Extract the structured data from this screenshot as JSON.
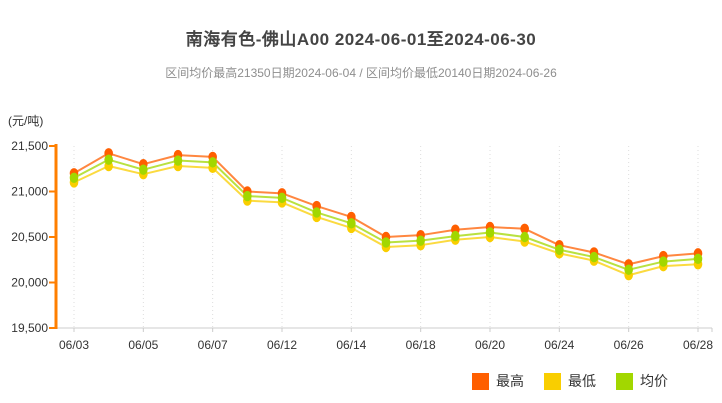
{
  "header": {
    "title": "南海有色-佛山A00 2024-06-01至2024-06-30",
    "subtitle": "区间均价最高21350日期2024-06-04 / 区间均价最低20140日期2024-06-26"
  },
  "axis": {
    "unit_label": "(元/吨)",
    "y_tick_labels": [
      "19,500",
      "20,000",
      "20,500",
      "21,000",
      "21,500"
    ],
    "x_tick_labels": [
      "06/03",
      "06/05",
      "06/07",
      "06/12",
      "06/14",
      "06/18",
      "06/20",
      "06/24",
      "06/26",
      "06/28"
    ]
  },
  "colors": {
    "high": "#ff5f00",
    "low": "#f9ce00",
    "avg": "#a2d700",
    "y_axis": "#ff7f00",
    "x_axis": "#cccccc",
    "gridline": "#dddddd",
    "tick_text": "#333333",
    "title_text": "#444444",
    "subtitle_text": "#8e8e8e"
  },
  "chart_data": {
    "type": "line",
    "title": "南海有色-佛山A00 2024-06-01至2024-06-30",
    "xlabel": "",
    "ylabel": "(元/吨)",
    "ylim": [
      19500,
      21500
    ],
    "y_ticks": [
      19500,
      20000,
      20500,
      21000,
      21500
    ],
    "grid": "vertical-dotted",
    "legend_position": "bottom-right",
    "categories": [
      "06/03",
      "06/04",
      "06/05",
      "06/06",
      "06/07",
      "06/11",
      "06/12",
      "06/13",
      "06/14",
      "06/17",
      "06/18",
      "06/19",
      "06/20",
      "06/21",
      "06/24",
      "06/25",
      "06/26",
      "06/27",
      "06/28"
    ],
    "labeled_category_indices": [
      0,
      2,
      4,
      6,
      8,
      10,
      12,
      14,
      16,
      18
    ],
    "series": [
      {
        "name": "最高",
        "key": "high",
        "values": [
          21200,
          21420,
          21300,
          21400,
          21380,
          21000,
          20980,
          20840,
          20720,
          20500,
          20520,
          20580,
          20610,
          20590,
          20410,
          20330,
          20200,
          20290,
          20320
        ]
      },
      {
        "name": "最低",
        "key": "low",
        "values": [
          21100,
          21280,
          21190,
          21280,
          21260,
          20900,
          20880,
          20720,
          20600,
          20390,
          20410,
          20470,
          20500,
          20450,
          20320,
          20240,
          20080,
          20180,
          20200
        ]
      },
      {
        "name": "均价",
        "key": "avg",
        "values": [
          21150,
          21350,
          21240,
          21340,
          21320,
          20950,
          20930,
          20770,
          20650,
          20440,
          20460,
          20510,
          20550,
          20500,
          20360,
          20280,
          20140,
          20230,
          20260
        ]
      }
    ]
  },
  "legend": {
    "items": [
      {
        "label": "最高",
        "color_key": "high"
      },
      {
        "label": "最低",
        "color_key": "low"
      },
      {
        "label": "均价",
        "color_key": "avg"
      }
    ]
  }
}
